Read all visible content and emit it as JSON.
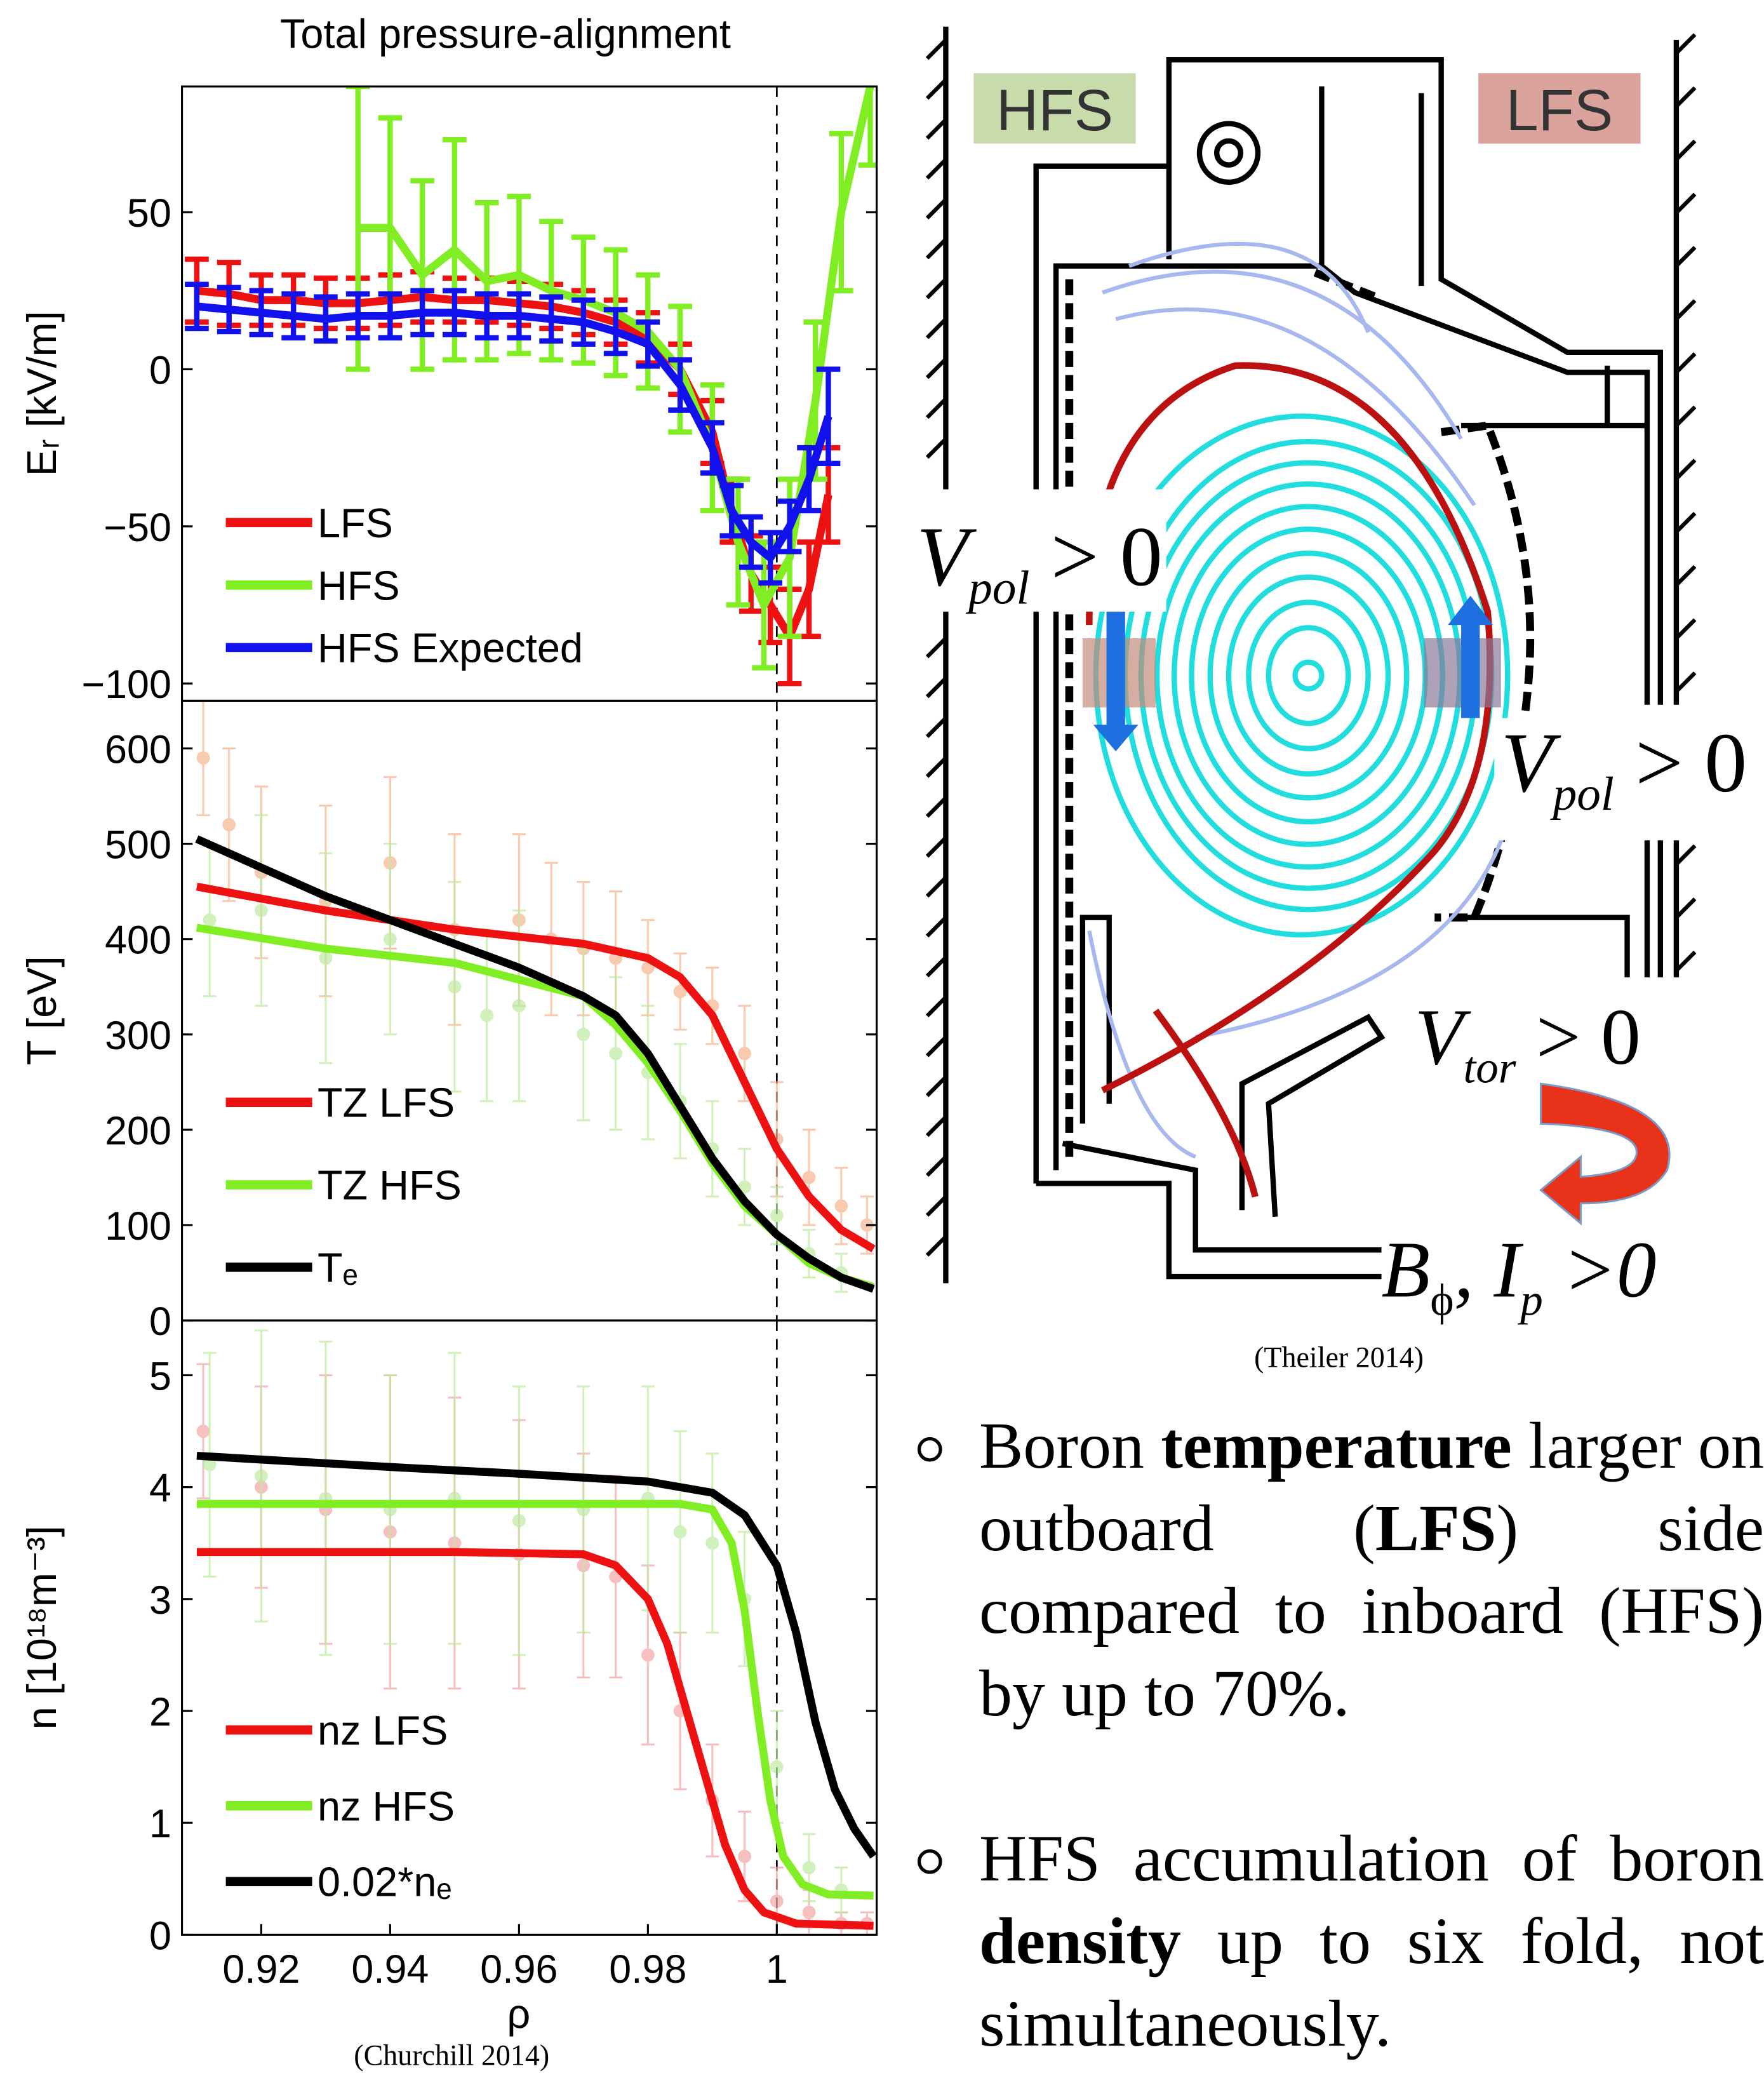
{
  "chart_data": [
    {
      "type": "line",
      "title": "Total pressure-alignment",
      "y_label": "Eᵣ [kV/m]",
      "xlim": [
        0.9077,
        1.0155
      ],
      "ylim": [
        -105.5,
        90
      ],
      "vline": 1,
      "legend": "lower left",
      "yticks": [
        {
          "value": -100,
          "label": "−100"
        },
        {
          "value": -50,
          "label": "−50"
        },
        0,
        50
      ],
      "series": [
        {
          "name": "LFS",
          "color": "#ee1111",
          "x": [
            0.91,
            0.915,
            0.92,
            0.925,
            0.93,
            0.935,
            0.94,
            0.945,
            0.95,
            0.955,
            0.96,
            0.965,
            0.97,
            0.975,
            0.98,
            0.985,
            0.99,
            0.993,
            0.996,
            0.999,
            1.002,
            1.005,
            1.008
          ],
          "values": [
            25,
            24,
            22,
            22,
            21,
            21,
            22,
            23,
            22,
            22,
            21,
            20,
            18,
            15,
            10,
            0,
            -20,
            -45,
            -65,
            -75,
            -85,
            -70,
            -40
          ],
          "errors": [
            10,
            10,
            8,
            8,
            8,
            8,
            8,
            8,
            7,
            7,
            7,
            7,
            7,
            7,
            8,
            8,
            10,
            10,
            12,
            12,
            15,
            15,
            15
          ]
        },
        {
          "name": "HFS",
          "color": "#80ee22",
          "x": [
            0.935,
            0.94,
            0.945,
            0.95,
            0.955,
            0.96,
            0.965,
            0.97,
            0.975,
            0.98,
            0.985,
            0.99,
            0.994,
            0.998,
            1.002,
            1.006,
            1.01,
            1.0145
          ],
          "values": [
            45,
            45,
            30,
            38,
            28,
            30,
            25,
            22,
            18,
            12,
            0,
            -25,
            -55,
            -75,
            -60,
            -10,
            50,
            90
          ],
          "errors": [
            45,
            35,
            30,
            35,
            25,
            25,
            22,
            20,
            20,
            18,
            20,
            20,
            20,
            20,
            25,
            25,
            25,
            25
          ]
        },
        {
          "name": "HFS Expected",
          "color": "#1111ee",
          "x": [
            0.91,
            0.915,
            0.92,
            0.925,
            0.93,
            0.935,
            0.94,
            0.945,
            0.95,
            0.955,
            0.96,
            0.965,
            0.97,
            0.975,
            0.98,
            0.985,
            0.99,
            0.993,
            0.996,
            0.999,
            1.002,
            1.005,
            1.008
          ],
          "values": [
            20,
            19,
            18,
            17,
            16,
            17,
            17,
            18,
            18,
            17,
            17,
            16,
            15,
            12,
            8,
            -5,
            -25,
            -45,
            -55,
            -60,
            -50,
            -35,
            -15
          ],
          "errors": [
            7,
            7,
            7,
            7,
            7,
            7,
            7,
            7,
            7,
            7,
            7,
            7,
            7,
            7,
            7,
            8,
            8,
            8,
            8,
            8,
            8,
            10,
            15
          ]
        }
      ]
    },
    {
      "type": "line",
      "y_label": "T [eV]",
      "xlim": [
        0.9077,
        1.0155
      ],
      "ylim": [
        0,
        650
      ],
      "vline": 1,
      "legend": "lower left",
      "yticks": [
        0,
        100,
        200,
        300,
        400,
        500,
        600
      ],
      "measured": [
        {
          "color": "#f6b48e",
          "x": [
            0.911,
            0.915,
            0.92,
            0.93,
            0.94,
            0.95,
            0.96,
            0.965,
            0.97,
            0.975,
            0.98,
            0.985,
            0.99,
            0.995,
            1.0,
            1.005,
            1.01,
            1.014
          ],
          "values": [
            590,
            520,
            470,
            440,
            480,
            410,
            420,
            400,
            390,
            380,
            370,
            345,
            330,
            280,
            190,
            150,
            120,
            100
          ],
          "errors": [
            60,
            80,
            90,
            100,
            90,
            100,
            90,
            80,
            70,
            70,
            50,
            40,
            40,
            50,
            60,
            50,
            40,
            30
          ]
        },
        {
          "color": "#bdeaa0",
          "x": [
            0.912,
            0.92,
            0.93,
            0.94,
            0.95,
            0.955,
            0.96,
            0.97,
            0.975,
            0.98,
            0.985,
            0.99,
            0.995,
            1.0,
            1.005,
            1.01
          ],
          "values": [
            420,
            430,
            380,
            400,
            350,
            320,
            330,
            300,
            280,
            260,
            230,
            180,
            140,
            110,
            70,
            50
          ],
          "errors": [
            80,
            100,
            110,
            100,
            110,
            90,
            100,
            90,
            80,
            70,
            60,
            50,
            40,
            30,
            25,
            20
          ]
        }
      ],
      "series": [
        {
          "name": "TZ LFS",
          "color": "#ee1111",
          "x": [
            0.91,
            0.93,
            0.95,
            0.97,
            0.98,
            0.985,
            0.99,
            0.995,
            1.0,
            1.005,
            1.01,
            1.015
          ],
          "values": [
            455,
            430,
            410,
            395,
            380,
            360,
            320,
            250,
            180,
            130,
            95,
            75
          ]
        },
        {
          "name": "TZ HFS",
          "color": "#80ee22",
          "x": [
            0.91,
            0.93,
            0.95,
            0.97,
            0.975,
            0.98,
            0.985,
            0.99,
            0.995,
            1.0,
            1.005,
            1.01,
            1.015
          ],
          "values": [
            412,
            390,
            375,
            340,
            310,
            270,
            220,
            165,
            120,
            90,
            60,
            45,
            35
          ]
        },
        {
          "name": "Tₑ",
          "color": "#000000",
          "x": [
            0.91,
            0.92,
            0.93,
            0.94,
            0.95,
            0.96,
            0.97,
            0.975,
            0.98,
            0.985,
            0.99,
            0.995,
            1.0,
            1.005,
            1.01,
            1.015
          ],
          "values": [
            505,
            475,
            445,
            420,
            395,
            370,
            340,
            320,
            280,
            225,
            170,
            125,
            90,
            65,
            45,
            33
          ]
        }
      ]
    },
    {
      "type": "line",
      "y_label": "n [10¹⁸m⁻³]",
      "x_label": "ρ",
      "xlim": [
        0.9077,
        1.0155
      ],
      "ylim": [
        0,
        5.49
      ],
      "vline": 1,
      "legend": "lower left",
      "xticks": [
        0.92,
        0.94,
        0.96,
        0.98,
        1
      ],
      "yticks": [
        0,
        1,
        2,
        3,
        4,
        5
      ],
      "measured": [
        {
          "color": "#f4a6a6",
          "x": [
            0.911,
            0.92,
            0.93,
            0.94,
            0.95,
            0.96,
            0.97,
            0.975,
            0.98,
            0.985,
            0.99,
            0.995,
            1.0,
            1.005,
            1.01,
            1.014
          ],
          "values": [
            4.5,
            4.0,
            3.8,
            3.6,
            3.5,
            3.4,
            3.3,
            3.2,
            2.5,
            2.0,
            1.2,
            0.7,
            0.3,
            0.2,
            0.1,
            0.1
          ],
          "errors": [
            0.6,
            0.9,
            1.2,
            1.4,
            1.3,
            1.2,
            1.0,
            0.9,
            0.8,
            0.7,
            0.5,
            0.4,
            0.3,
            0.2,
            0.1,
            0.1
          ]
        },
        {
          "color": "#bdeaa0",
          "x": [
            0.912,
            0.92,
            0.93,
            0.94,
            0.95,
            0.96,
            0.97,
            0.98,
            0.985,
            0.99,
            0.995,
            1.0,
            1.005,
            1.01
          ],
          "values": [
            4.2,
            4.1,
            3.9,
            3.8,
            3.9,
            3.7,
            3.8,
            3.9,
            3.6,
            3.5,
            3.0,
            1.5,
            0.6,
            0.4
          ],
          "errors": [
            1.0,
            1.3,
            1.4,
            1.2,
            1.3,
            1.2,
            1.1,
            1.0,
            0.9,
            0.8,
            0.6,
            0.5,
            0.3,
            0.2
          ]
        }
      ],
      "series": [
        {
          "name": "nz LFS",
          "color": "#ee1111",
          "x": [
            0.91,
            0.95,
            0.97,
            0.975,
            0.98,
            0.983,
            0.986,
            0.989,
            0.992,
            0.995,
            0.998,
            1.003,
            1.015
          ],
          "values": [
            3.42,
            3.42,
            3.4,
            3.3,
            3.0,
            2.6,
            2.0,
            1.4,
            0.8,
            0.4,
            0.2,
            0.1,
            0.08
          ]
        },
        {
          "name": "nz HFS",
          "color": "#80ee22",
          "x": [
            0.91,
            0.985,
            0.99,
            0.993,
            0.995,
            0.997,
            0.999,
            1.001,
            1.004,
            1.008,
            1.015
          ],
          "values": [
            3.85,
            3.85,
            3.8,
            3.5,
            2.9,
            2.0,
            1.2,
            0.7,
            0.45,
            0.36,
            0.35
          ]
        },
        {
          "name": "0.02*nₑ",
          "color": "#000000",
          "x": [
            0.91,
            0.94,
            0.96,
            0.98,
            0.99,
            0.995,
            1.0,
            1.003,
            1.006,
            1.009,
            1.012,
            1.015
          ],
          "values": [
            4.28,
            4.18,
            4.12,
            4.05,
            3.95,
            3.75,
            3.3,
            2.7,
            1.9,
            1.3,
            0.95,
            0.7
          ]
        }
      ]
    }
  ],
  "chart_caption": "(Churchill 2014)",
  "diagram": {
    "hfs": "HFS",
    "lfs": "LFS",
    "v_pol_left": [
      "V",
      "pol",
      " > 0"
    ],
    "v_pol_right": [
      "V",
      "pol",
      " > 0"
    ],
    "v_tor": [
      "V",
      "tor",
      " > 0"
    ],
    "field": [
      "B",
      "ϕ",
      ", I",
      "p",
      " >0"
    ],
    "caption": "(Theiler 2014)"
  },
  "bullets": [
    [
      {
        "text": "Boron "
      },
      {
        "text": "temperature",
        "bold": true
      },
      {
        "text": " larger on outboard ("
      },
      {
        "text": "LFS",
        "bold": true
      },
      {
        "text": ") side compared to inboard (HFS) by up to 70%."
      }
    ],
    [
      {
        "text": "HFS accumulation of boron "
      },
      {
        "text": "density",
        "bold": true
      },
      {
        "text": " up to six fold, not simultaneously."
      }
    ]
  ]
}
